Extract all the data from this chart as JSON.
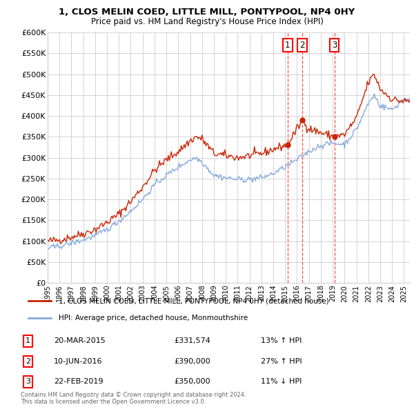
{
  "title": "1, CLOS MELIN COED, LITTLE MILL, PONTYPOOL, NP4 0HY",
  "subtitle": "Price paid vs. HM Land Registry's House Price Index (HPI)",
  "legend_red": "1, CLOS MELIN COED, LITTLE MILL, PONTYPOOL, NP4 0HY (detached house)",
  "legend_blue": "HPI: Average price, detached house, Monmouthshire",
  "footer1": "Contains HM Land Registry data © Crown copyright and database right 2024.",
  "footer2": "This data is licensed under the Open Government Licence v3.0.",
  "sales": [
    {
      "num": 1,
      "date": "20-MAR-2015",
      "price": "£331,574",
      "change": "13% ↑ HPI",
      "x_year": 2015.21
    },
    {
      "num": 2,
      "date": "10-JUN-2016",
      "price": "£390,000",
      "change": "27% ↑ HPI",
      "x_year": 2016.44
    },
    {
      "num": 3,
      "date": "22-FEB-2019",
      "price": "£350,000",
      "change": "11% ↓ HPI",
      "x_year": 2019.14
    }
  ],
  "sale_marker_values": [
    331574,
    390000,
    350000
  ],
  "ylim": [
    0,
    600000
  ],
  "yticks": [
    0,
    50000,
    100000,
    150000,
    200000,
    250000,
    300000,
    350000,
    400000,
    450000,
    500000,
    550000,
    600000
  ],
  "xlim_start": 1995.0,
  "xlim_end": 2025.5,
  "background_color": "#ffffff",
  "grid_color": "#cccccc",
  "red_color": "#cc2200",
  "blue_color": "#88aadd",
  "red_anchors_x": [
    1995,
    1996,
    1997,
    1998,
    1999,
    2000,
    2001,
    2002,
    2003,
    2004,
    2005,
    2006,
    2007,
    2007.5,
    2008,
    2009,
    2010,
    2011,
    2012,
    2013,
    2014,
    2015.21,
    2016.44,
    2017,
    2018,
    2019.14,
    2020,
    2021,
    2022,
    2022.5,
    2023,
    2024,
    2025
  ],
  "red_anchors_y": [
    100000,
    103000,
    110000,
    118000,
    128000,
    145000,
    165000,
    195000,
    230000,
    270000,
    295000,
    315000,
    340000,
    350000,
    345000,
    310000,
    305000,
    300000,
    305000,
    310000,
    320000,
    331574,
    390000,
    370000,
    360000,
    350000,
    355000,
    395000,
    480000,
    500000,
    465000,
    440000,
    435000
  ],
  "blue_anchors_x": [
    1995,
    1996,
    1997,
    1998,
    1999,
    2000,
    2001,
    2002,
    2003,
    2004,
    2005,
    2006,
    2007,
    2007.5,
    2008,
    2009,
    2010,
    2011,
    2012,
    2013,
    2014,
    2015,
    2016,
    2017,
    2018,
    2019,
    2020,
    2021,
    2022,
    2022.5,
    2023,
    2024,
    2025
  ],
  "blue_anchors_y": [
    83000,
    88000,
    95000,
    103000,
    113000,
    128000,
    148000,
    172000,
    200000,
    235000,
    258000,
    278000,
    295000,
    300000,
    290000,
    258000,
    252000,
    248000,
    248000,
    252000,
    262000,
    278000,
    295000,
    315000,
    330000,
    335000,
    332000,
    368000,
    430000,
    450000,
    425000,
    415000,
    440000
  ],
  "noise_seed": 42,
  "noise_red": 5000,
  "noise_blue": 3500
}
